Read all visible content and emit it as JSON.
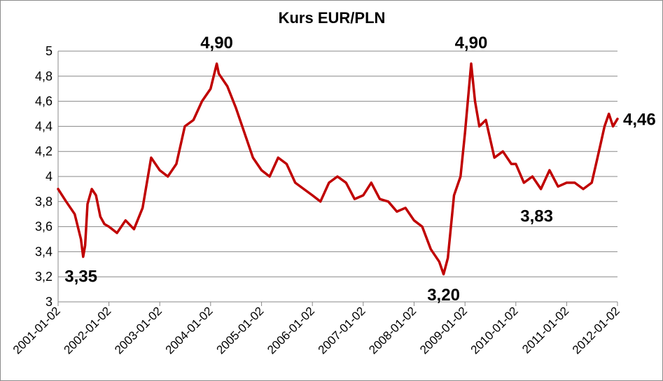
{
  "chart_data": {
    "type": "line",
    "title": "Kurs EUR/PLN",
    "xlabel": "",
    "ylabel": "",
    "ylim": [
      3,
      5
    ],
    "yticks": [
      "3",
      "3,2",
      "3,4",
      "3,6",
      "3,8",
      "4",
      "4,2",
      "4,4",
      "4,6",
      "4,8",
      "5"
    ],
    "xticks": [
      "2001-01-02",
      "2002-01-02",
      "2003-01-02",
      "2004-01-02",
      "2005-01-02",
      "2006-01-02",
      "2007-01-02",
      "2008-01-02",
      "2009-01-02",
      "2010-01-02",
      "2011-01-02",
      "2012-01-02"
    ],
    "grid": "horizontal",
    "series_color": "#C00000",
    "series": [
      {
        "x": [
          "2001-01-02",
          "2001-03-01",
          "2001-05-01",
          "2001-06-15",
          "2001-07-01",
          "2001-07-15",
          "2001-08-01",
          "2001-09-01",
          "2001-10-01",
          "2001-11-01",
          "2001-12-01",
          "2002-01-02",
          "2002-03-01",
          "2002-05-01",
          "2002-07-01",
          "2002-09-01",
          "2002-11-01",
          "2003-01-02",
          "2003-03-01",
          "2003-05-01",
          "2003-07-01",
          "2003-09-01",
          "2003-11-01",
          "2004-01-02",
          "2004-02-15",
          "2004-03-01",
          "2004-05-01",
          "2004-07-01",
          "2004-09-01",
          "2004-11-01",
          "2005-01-02",
          "2005-03-01",
          "2005-05-01",
          "2005-07-01",
          "2005-09-01",
          "2005-11-01",
          "2006-01-02",
          "2006-03-01",
          "2006-05-01",
          "2006-07-01",
          "2006-09-01",
          "2006-11-01",
          "2007-01-02",
          "2007-03-01",
          "2007-05-01",
          "2007-07-01",
          "2007-09-01",
          "2007-11-01",
          "2008-01-02",
          "2008-03-01",
          "2008-05-01",
          "2008-07-01",
          "2008-08-01",
          "2008-09-01",
          "2008-10-15",
          "2008-12-01",
          "2009-01-02",
          "2009-02-15",
          "2009-03-15",
          "2009-04-15",
          "2009-06-01",
          "2009-08-01",
          "2009-10-01",
          "2009-12-01",
          "2010-01-02",
          "2010-03-01",
          "2010-05-01",
          "2010-07-01",
          "2010-09-01",
          "2010-11-01",
          "2011-01-02",
          "2011-03-01",
          "2011-05-01",
          "2011-07-01",
          "2011-08-01",
          "2011-09-01",
          "2011-10-01",
          "2011-11-01",
          "2011-12-01",
          "2012-01-02"
        ],
        "y": [
          3.9,
          3.8,
          3.7,
          3.5,
          3.36,
          3.45,
          3.78,
          3.9,
          3.85,
          3.68,
          3.62,
          3.6,
          3.55,
          3.65,
          3.58,
          3.75,
          4.15,
          4.05,
          4.0,
          4.1,
          4.4,
          4.45,
          4.6,
          4.7,
          4.9,
          4.82,
          4.72,
          4.55,
          4.35,
          4.15,
          4.05,
          4.0,
          4.15,
          4.1,
          3.95,
          3.9,
          3.85,
          3.8,
          3.95,
          4.0,
          3.95,
          3.82,
          3.85,
          3.95,
          3.82,
          3.8,
          3.72,
          3.75,
          3.65,
          3.6,
          3.42,
          3.32,
          3.22,
          3.35,
          3.85,
          4.0,
          4.35,
          4.9,
          4.6,
          4.4,
          4.45,
          4.15,
          4.2,
          4.1,
          4.1,
          3.95,
          4.0,
          3.9,
          4.05,
          3.92,
          3.95,
          3.95,
          3.9,
          3.95,
          4.1,
          4.25,
          4.4,
          4.5,
          4.4,
          4.46
        ]
      }
    ],
    "annotations": [
      {
        "text": "3,35",
        "x": "2001-06-15",
        "y": 3.35
      },
      {
        "text": "4,90",
        "x": "2004-02-15",
        "y": 4.9
      },
      {
        "text": "3,20",
        "x": "2008-08-01",
        "y": 3.2
      },
      {
        "text": "4,90",
        "x": "2009-02-15",
        "y": 4.9
      },
      {
        "text": "3,83",
        "x": "2010-06-01",
        "y": 3.83
      },
      {
        "text": "4,46",
        "x": "2012-01-02",
        "y": 4.46
      }
    ]
  }
}
